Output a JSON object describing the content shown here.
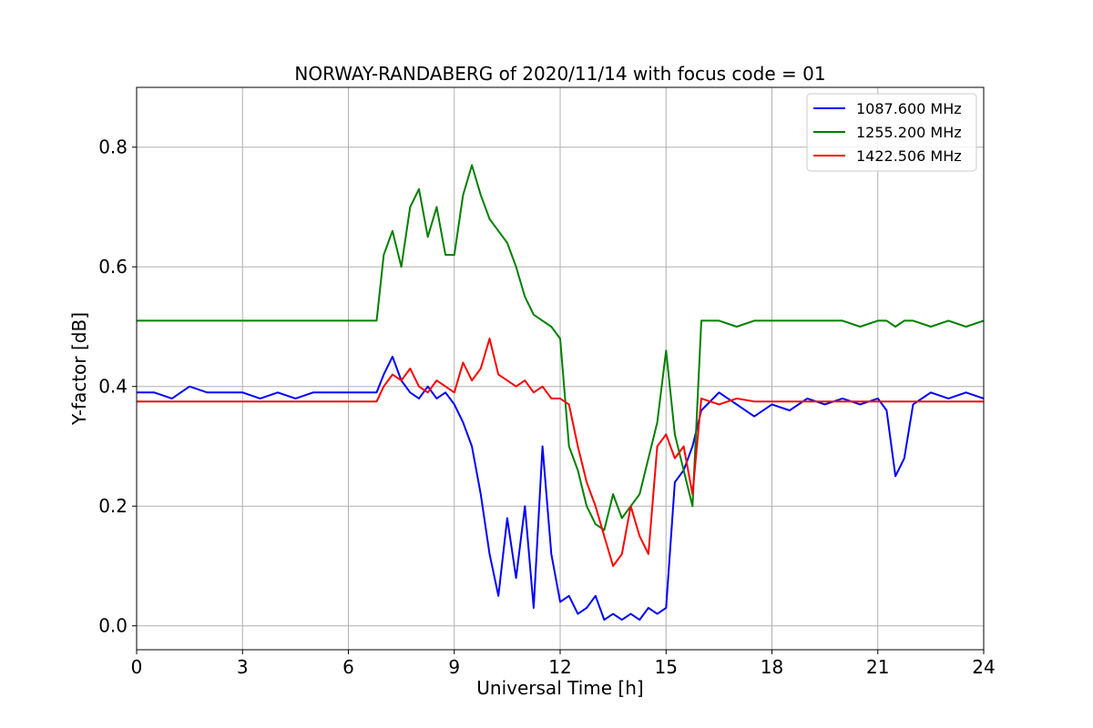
{
  "chart_data": {
    "type": "line",
    "title": "NORWAY-RANDABERG of 2020/11/14 with focus code = 01",
    "xlabel": "Universal Time [h]",
    "ylabel": "Y-factor [dB]",
    "xlim": [
      0,
      24
    ],
    "ylim": [
      -0.04,
      0.9
    ],
    "xticks": [
      0,
      3,
      6,
      9,
      12,
      15,
      18,
      21,
      24
    ],
    "yticks": [
      0.0,
      0.2,
      0.4,
      0.6,
      0.8
    ],
    "ytick_labels": [
      "0.0",
      "0.2",
      "0.4",
      "0.6",
      "0.8"
    ],
    "grid": true,
    "legend_position": "top-right",
    "series": [
      {
        "name": "1087.600 MHz",
        "color": "#0000ff",
        "x": [
          0,
          0.5,
          1.0,
          1.5,
          2.0,
          2.5,
          3.0,
          3.5,
          4.0,
          4.5,
          5.0,
          5.5,
          6.0,
          6.5,
          6.8,
          7.0,
          7.25,
          7.5,
          7.75,
          8.0,
          8.25,
          8.5,
          8.75,
          9.0,
          9.25,
          9.5,
          9.75,
          10.0,
          10.25,
          10.5,
          10.75,
          11.0,
          11.25,
          11.5,
          11.75,
          12.0,
          12.25,
          12.5,
          12.75,
          13.0,
          13.25,
          13.5,
          13.75,
          14.0,
          14.25,
          14.5,
          14.75,
          15.0,
          15.25,
          15.5,
          15.75,
          16.0,
          16.5,
          17.0,
          17.5,
          18.0,
          18.5,
          19.0,
          19.5,
          20.0,
          20.5,
          21.0,
          21.25,
          21.5,
          21.75,
          22.0,
          22.5,
          23.0,
          23.5,
          24.0
        ],
        "values": [
          0.39,
          0.39,
          0.38,
          0.4,
          0.39,
          0.39,
          0.39,
          0.38,
          0.39,
          0.38,
          0.39,
          0.39,
          0.39,
          0.39,
          0.39,
          0.42,
          0.45,
          0.41,
          0.39,
          0.38,
          0.4,
          0.38,
          0.39,
          0.37,
          0.34,
          0.3,
          0.22,
          0.12,
          0.05,
          0.18,
          0.08,
          0.2,
          0.03,
          0.3,
          0.12,
          0.04,
          0.05,
          0.02,
          0.03,
          0.05,
          0.01,
          0.02,
          0.01,
          0.02,
          0.01,
          0.03,
          0.02,
          0.03,
          0.24,
          0.26,
          0.3,
          0.36,
          0.39,
          0.37,
          0.35,
          0.37,
          0.36,
          0.38,
          0.37,
          0.38,
          0.37,
          0.38,
          0.36,
          0.25,
          0.28,
          0.37,
          0.39,
          0.38,
          0.39,
          0.38
        ]
      },
      {
        "name": "1255.200 MHz",
        "color": "#008000",
        "x": [
          0,
          0.5,
          1.0,
          1.5,
          2.0,
          2.5,
          3.0,
          3.5,
          4.0,
          4.5,
          5.0,
          5.5,
          6.0,
          6.5,
          6.8,
          7.0,
          7.25,
          7.5,
          7.75,
          8.0,
          8.25,
          8.5,
          8.75,
          9.0,
          9.25,
          9.5,
          9.75,
          10.0,
          10.25,
          10.5,
          10.75,
          11.0,
          11.25,
          11.5,
          11.75,
          12.0,
          12.25,
          12.5,
          12.75,
          13.0,
          13.25,
          13.5,
          13.75,
          14.0,
          14.25,
          14.5,
          14.75,
          15.0,
          15.25,
          15.5,
          15.75,
          16.0,
          16.5,
          17.0,
          17.5,
          18.0,
          18.5,
          19.0,
          19.5,
          20.0,
          20.5,
          21.0,
          21.25,
          21.5,
          21.75,
          22.0,
          22.5,
          23.0,
          23.5,
          24.0
        ],
        "values": [
          0.51,
          0.51,
          0.51,
          0.51,
          0.51,
          0.51,
          0.51,
          0.51,
          0.51,
          0.51,
          0.51,
          0.51,
          0.51,
          0.51,
          0.51,
          0.62,
          0.66,
          0.6,
          0.7,
          0.73,
          0.65,
          0.7,
          0.62,
          0.62,
          0.72,
          0.77,
          0.72,
          0.68,
          0.66,
          0.64,
          0.6,
          0.55,
          0.52,
          0.51,
          0.5,
          0.48,
          0.3,
          0.26,
          0.2,
          0.17,
          0.16,
          0.22,
          0.18,
          0.2,
          0.22,
          0.28,
          0.34,
          0.46,
          0.32,
          0.26,
          0.2,
          0.51,
          0.51,
          0.5,
          0.51,
          0.51,
          0.51,
          0.51,
          0.51,
          0.51,
          0.5,
          0.51,
          0.51,
          0.5,
          0.51,
          0.51,
          0.5,
          0.51,
          0.5,
          0.51
        ]
      },
      {
        "name": "1422.506 MHz",
        "color": "#ff0000",
        "x": [
          0,
          0.5,
          1.0,
          1.5,
          2.0,
          2.5,
          3.0,
          3.5,
          4.0,
          4.5,
          5.0,
          5.5,
          6.0,
          6.5,
          6.8,
          7.0,
          7.25,
          7.5,
          7.75,
          8.0,
          8.25,
          8.5,
          8.75,
          9.0,
          9.25,
          9.5,
          9.75,
          10.0,
          10.25,
          10.5,
          10.75,
          11.0,
          11.25,
          11.5,
          11.75,
          12.0,
          12.25,
          12.5,
          12.75,
          13.0,
          13.25,
          13.5,
          13.75,
          14.0,
          14.25,
          14.5,
          14.75,
          15.0,
          15.25,
          15.5,
          15.75,
          16.0,
          16.5,
          17.0,
          17.5,
          18.0,
          18.5,
          19.0,
          19.5,
          20.0,
          20.5,
          21.0,
          21.25,
          21.5,
          21.75,
          22.0,
          22.5,
          23.0,
          23.5,
          24.0
        ],
        "values": [
          0.375,
          0.375,
          0.375,
          0.375,
          0.375,
          0.375,
          0.375,
          0.375,
          0.375,
          0.375,
          0.375,
          0.375,
          0.375,
          0.375,
          0.375,
          0.4,
          0.42,
          0.41,
          0.43,
          0.4,
          0.39,
          0.41,
          0.4,
          0.39,
          0.44,
          0.41,
          0.43,
          0.48,
          0.42,
          0.41,
          0.4,
          0.41,
          0.39,
          0.4,
          0.38,
          0.38,
          0.37,
          0.3,
          0.24,
          0.2,
          0.15,
          0.1,
          0.12,
          0.2,
          0.15,
          0.12,
          0.3,
          0.32,
          0.28,
          0.3,
          0.22,
          0.38,
          0.37,
          0.38,
          0.375,
          0.375,
          0.375,
          0.375,
          0.375,
          0.375,
          0.375,
          0.375,
          0.375,
          0.375,
          0.375,
          0.375,
          0.375,
          0.375,
          0.375,
          0.375
        ]
      }
    ]
  }
}
